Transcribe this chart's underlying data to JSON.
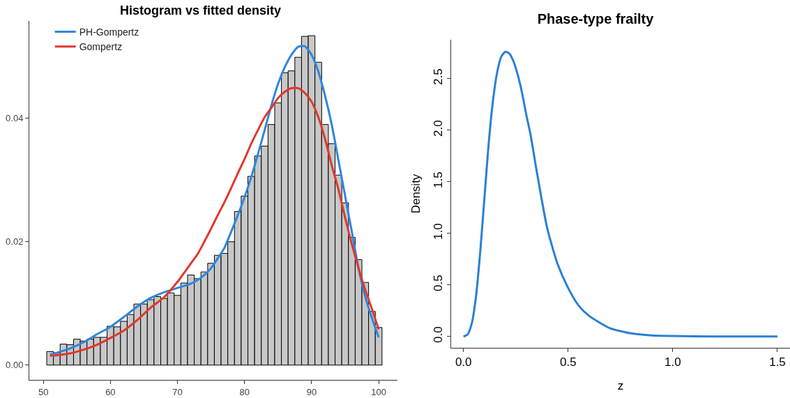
{
  "chart_data": [
    {
      "type": "histogram",
      "title": "Histogram vs fitted density",
      "color": "#c8c8c8",
      "bins": [
        50.5,
        51.5,
        52.5,
        53.5,
        54.5,
        55.5,
        56.5,
        57.5,
        58.5,
        59.5,
        60.5,
        61.5,
        62.5,
        63.5,
        64.5,
        65.5,
        66.5,
        67.5,
        68.5,
        69.5,
        70.5,
        71.5,
        72.5,
        73.5,
        74.5,
        75.5,
        76.5,
        77.5,
        78.5,
        79.5,
        80.5,
        81.5,
        82.5,
        83.5,
        84.5,
        85.5,
        86.5,
        87.5,
        88.5,
        89.5,
        90.5,
        91.5,
        92.5,
        93.5,
        94.5,
        95.5,
        96.5,
        97.5,
        98.5,
        99.5,
        100.5
      ],
      "values": [
        0.0022,
        0.002,
        0.0034,
        0.0033,
        0.0042,
        0.0039,
        0.0042,
        0.0045,
        0.0045,
        0.0063,
        0.0062,
        0.0071,
        0.0082,
        0.0099,
        0.0099,
        0.0106,
        0.0111,
        0.0108,
        0.0117,
        0.0113,
        0.0133,
        0.0146,
        0.014,
        0.0151,
        0.0165,
        0.0178,
        0.0181,
        0.02,
        0.0249,
        0.0274,
        0.0306,
        0.0339,
        0.0355,
        0.039,
        0.0425,
        0.0474,
        0.0477,
        0.0499,
        0.0533,
        0.0534,
        0.0491,
        0.039,
        0.0359,
        0.0308,
        0.0263,
        0.0207,
        0.0171,
        0.0134,
        0.0087,
        0.0061
      ],
      "series": [
        {
          "type": "line",
          "name": "PH-Gompertz",
          "color": "#2e86de",
          "x": [
            51,
            52,
            54,
            56,
            58,
            60,
            62,
            64,
            66,
            68,
            70,
            72,
            73,
            74,
            75,
            76,
            77,
            78,
            79,
            80,
            81,
            82,
            83,
            84,
            85,
            86,
            87,
            88,
            89,
            90,
            91,
            92,
            93,
            94,
            95,
            96,
            97,
            98,
            99,
            100
          ],
          "values": [
            0.0017,
            0.002,
            0.0027,
            0.0037,
            0.005,
            0.0062,
            0.0078,
            0.0095,
            0.0109,
            0.0118,
            0.0125,
            0.0132,
            0.0138,
            0.0146,
            0.0157,
            0.0173,
            0.019,
            0.0216,
            0.0243,
            0.0272,
            0.0305,
            0.0342,
            0.0381,
            0.0421,
            0.0456,
            0.0483,
            0.0503,
            0.0516,
            0.0517,
            0.0503,
            0.0476,
            0.0437,
            0.039,
            0.0332,
            0.0274,
            0.0216,
            0.0157,
            0.0111,
            0.0076,
            0.0045
          ]
        },
        {
          "type": "line",
          "name": "Gompertz",
          "color": "#e0382d",
          "x": [
            51,
            54,
            56,
            58,
            60,
            62,
            64,
            66,
            68,
            70,
            72,
            73,
            74,
            75,
            76,
            77,
            78,
            79,
            80,
            81,
            82,
            83,
            84,
            85,
            86,
            87,
            88,
            89,
            90,
            91,
            92,
            93,
            94,
            95,
            96,
            97,
            98,
            99,
            100
          ],
          "values": [
            0.0015,
            0.0019,
            0.0025,
            0.0033,
            0.0044,
            0.0056,
            0.0073,
            0.0093,
            0.011,
            0.0135,
            0.0165,
            0.018,
            0.02,
            0.0221,
            0.0243,
            0.0264,
            0.0287,
            0.0311,
            0.0334,
            0.0359,
            0.0381,
            0.0402,
            0.0417,
            0.0433,
            0.0443,
            0.0449,
            0.0449,
            0.0441,
            0.0427,
            0.0402,
            0.0367,
            0.0324,
            0.0285,
            0.0239,
            0.0196,
            0.0157,
            0.0122,
            0.0091,
            0.0058
          ]
        }
      ],
      "xlim": [
        47.9,
        102.8
      ],
      "xticks": [
        50,
        60,
        70,
        80,
        90,
        100
      ],
      "ylim": [
        -0.0024,
        0.0558
      ],
      "yticks": [
        {
          "value": 0,
          "label": "0.00"
        },
        {
          "value": 0.02,
          "label": "0.02"
        },
        {
          "value": 0.04,
          "label": "0.04"
        }
      ],
      "legend": "top left",
      "line_style": "solid"
    },
    {
      "type": "line",
      "title": "Phase-type frailty",
      "xlabel": "z",
      "ylabel": "Density",
      "series": [
        {
          "color": "#2a7fd4",
          "x": [
            0,
            0.02,
            0.04,
            0.06,
            0.08,
            0.1,
            0.12,
            0.14,
            0.16,
            0.18,
            0.2,
            0.22,
            0.24,
            0.26,
            0.28,
            0.3,
            0.32,
            0.35,
            0.4,
            0.45,
            0.5,
            0.55,
            0.6,
            0.7,
            0.8,
            0.9,
            1.0,
            1.2,
            1.5
          ],
          "values": [
            0,
            0.02,
            0.13,
            0.39,
            0.82,
            1.34,
            1.86,
            2.27,
            2.55,
            2.71,
            2.76,
            2.74,
            2.66,
            2.53,
            2.36,
            2.15,
            1.96,
            1.6,
            1.05,
            0.7,
            0.47,
            0.3,
            0.2,
            0.08,
            0.03,
            0.01,
            0.005,
            0,
            0
          ]
        }
      ],
      "xlim": [
        -0.059,
        1.56
      ],
      "xticks": [
        {
          "value": 0,
          "label": "0.0"
        },
        {
          "value": 0.5,
          "label": "0.5"
        },
        {
          "value": 1,
          "label": "1.0"
        },
        {
          "value": 1.5,
          "label": "1.5"
        }
      ],
      "ylim": [
        -0.11,
        2.876
      ],
      "yticks": [
        {
          "value": 0,
          "label": "0.0"
        },
        {
          "value": 0.5,
          "label": "0.5"
        },
        {
          "value": 1,
          "label": "1.0"
        },
        {
          "value": 1.5,
          "label": "1.5"
        },
        {
          "value": 2,
          "label": "2.0"
        },
        {
          "value": 2.5,
          "label": "2.5"
        }
      ],
      "line_style": "solid"
    }
  ]
}
